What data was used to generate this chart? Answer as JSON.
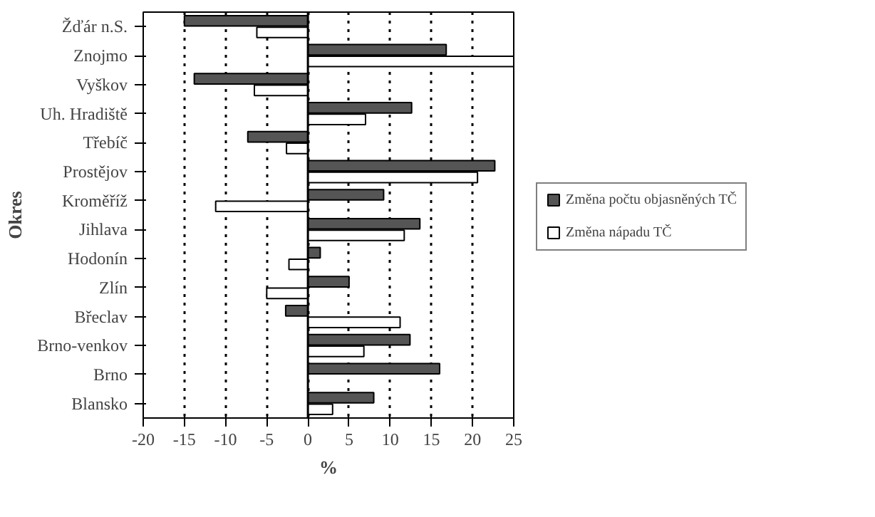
{
  "chart_data": {
    "type": "bar",
    "orientation": "horizontal",
    "xlabel": "%",
    "ylabel": "Okres",
    "categories": [
      "Žďár n.S.",
      "Znojmo",
      "Vyškov",
      "Uh. Hradiště",
      "Třebíč",
      "Prostějov",
      "Kroměříž",
      "Jihlava",
      "Hodonín",
      "Zlín",
      "Břeclav",
      "Brno-venkov",
      "Brno",
      "Blansko"
    ],
    "series": [
      {
        "name": "Změna počtu objasněných TČ",
        "color": "#555555",
        "values": [
          -15,
          16.8,
          -13.8,
          12.6,
          -7.3,
          22.7,
          9.2,
          13.6,
          1.5,
          5,
          -2.7,
          12.4,
          16,
          8
        ]
      },
      {
        "name": "Změna nápadu TČ",
        "color": "#ffffff",
        "values": [
          -6.2,
          25,
          -6.5,
          7,
          -2.6,
          20.6,
          -11.2,
          11.7,
          -2.3,
          -5,
          11.2,
          6.8,
          null,
          3
        ]
      }
    ],
    "xlim": [
      -20,
      25
    ],
    "xticks": [
      -20,
      -15,
      -10,
      -5,
      0,
      5,
      10,
      15,
      20,
      25
    ],
    "grid": "x",
    "legend": "right"
  }
}
